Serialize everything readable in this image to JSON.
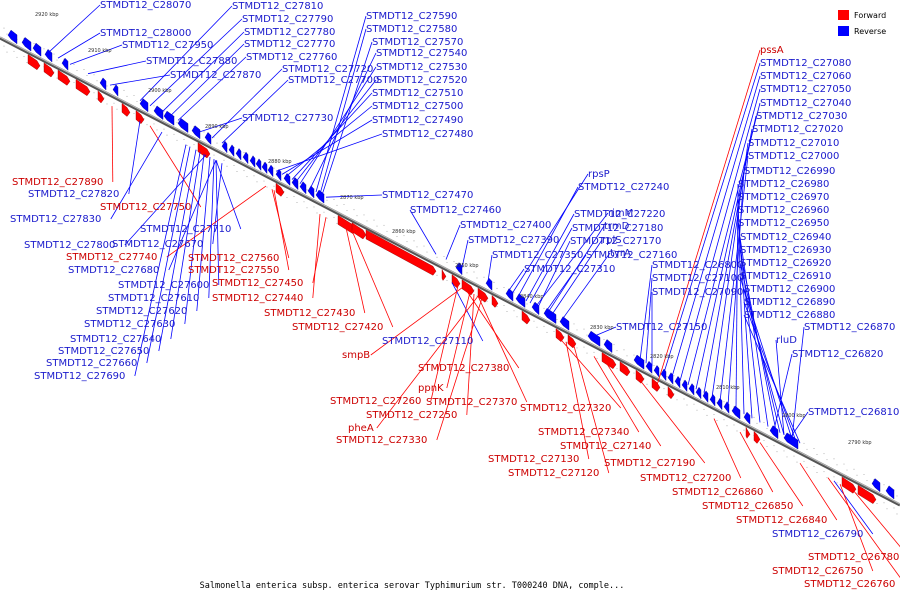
{
  "caption": "Salmonella enterica subsp. enterica serovar Typhimurium str. T000240 DNA, comple...",
  "legend": [
    {
      "label": "Forward",
      "color": "#ff0000"
    },
    {
      "label": "Reverse",
      "color": "#0000ff"
    }
  ],
  "colors": {
    "forward": "#ff0000",
    "reverse": "#0000ff",
    "forward_text": "#cc0000",
    "reverse_text": "#1a1acc"
  },
  "ticks": [
    "2920 kbp",
    "2910 kbp",
    "2900 kbp",
    "2890 kbp",
    "2880 kbp",
    "2870 kbp",
    "2860 kbp",
    "2850 kbp",
    "2840 kbp",
    "2830 kbp",
    "2820 kbp",
    "2810 kbp",
    "2800 kbp",
    "2790 kbp"
  ],
  "labels": [
    {
      "t": "STMDT12_C28070",
      "s": "r"
    },
    {
      "t": "STMDT12_C28000",
      "s": "r"
    },
    {
      "t": "STMDT12_C27950",
      "s": "r"
    },
    {
      "t": "STMDT12_C27880",
      "s": "r"
    },
    {
      "t": "STMDT12_C27870",
      "s": "r"
    },
    {
      "t": "STMDT12_C27810",
      "s": "r"
    },
    {
      "t": "STMDT12_C27790",
      "s": "r"
    },
    {
      "t": "STMDT12_C27780",
      "s": "r"
    },
    {
      "t": "STMDT12_C27770",
      "s": "r"
    },
    {
      "t": "STMDT12_C27760",
      "s": "r"
    },
    {
      "t": "STMDT12_C27720",
      "s": "r"
    },
    {
      "t": "STMDT12_C27700",
      "s": "r"
    },
    {
      "t": "STMDT12_C27730",
      "s": "r"
    },
    {
      "t": "STMDT12_C27590",
      "s": "r"
    },
    {
      "t": "STMDT12_C27580",
      "s": "r"
    },
    {
      "t": "STMDT12_C27570",
      "s": "r"
    },
    {
      "t": "STMDT12_C27540",
      "s": "r"
    },
    {
      "t": "STMDT12_C27530",
      "s": "r"
    },
    {
      "t": "STMDT12_C27520",
      "s": "r"
    },
    {
      "t": "STMDT12_C27510",
      "s": "r"
    },
    {
      "t": "STMDT12_C27500",
      "s": "r"
    },
    {
      "t": "STMDT12_C27490",
      "s": "r"
    },
    {
      "t": "STMDT12_C27480",
      "s": "r"
    },
    {
      "t": "STMDT12_C27890",
      "s": "f"
    },
    {
      "t": "STMDT12_C27820",
      "s": "r"
    },
    {
      "t": "STMDT12_C27750",
      "s": "f"
    },
    {
      "t": "STMDT12_C27830",
      "s": "r"
    },
    {
      "t": "STMDT12_C27710",
      "s": "r"
    },
    {
      "t": "STMDT12_C27800",
      "s": "r"
    },
    {
      "t": "STMDT12_C27670",
      "s": "r"
    },
    {
      "t": "STMDT12_C27740",
      "s": "f"
    },
    {
      "t": "STMDT12_C27560",
      "s": "f"
    },
    {
      "t": "STMDT12_C27680",
      "s": "r"
    },
    {
      "t": "STMDT12_C27550",
      "s": "f"
    },
    {
      "t": "STMDT12_C27600",
      "s": "r"
    },
    {
      "t": "STMDT12_C27450",
      "s": "f"
    },
    {
      "t": "STMDT12_C27610",
      "s": "r"
    },
    {
      "t": "STMDT12_C27440",
      "s": "f"
    },
    {
      "t": "STMDT12_C27620",
      "s": "r"
    },
    {
      "t": "STMDT12_C27430",
      "s": "f"
    },
    {
      "t": "STMDT12_C27630",
      "s": "r"
    },
    {
      "t": "STMDT12_C27420",
      "s": "f"
    },
    {
      "t": "STMDT12_C27640",
      "s": "r"
    },
    {
      "t": "STMDT12_C27650",
      "s": "r"
    },
    {
      "t": "STMDT12_C27660",
      "s": "r"
    },
    {
      "t": "STMDT12_C27690",
      "s": "r"
    },
    {
      "t": "STMDT12_C27470",
      "s": "r"
    },
    {
      "t": "STMDT12_C27460",
      "s": "r"
    },
    {
      "t": "STMDT12_C27400",
      "s": "r"
    },
    {
      "t": "STMDT12_C27390",
      "s": "r"
    },
    {
      "t": "STMDT12_C27350",
      "s": "r"
    },
    {
      "t": "STMDT12_C27310",
      "s": "r"
    },
    {
      "t": "rpsP",
      "s": "r"
    },
    {
      "t": "STMDT12_C27240",
      "s": "r"
    },
    {
      "t": "STMDT12_C27220",
      "s": "r"
    },
    {
      "t": "rimM",
      "s": "r"
    },
    {
      "t": "STMDT12_C27180",
      "s": "r"
    },
    {
      "t": "trmD",
      "s": "r"
    },
    {
      "t": "STMDT12_C27170",
      "s": "r"
    },
    {
      "t": "rplS",
      "s": "r"
    },
    {
      "t": "STMDT12_C27160",
      "s": "r"
    },
    {
      "t": "tyrA",
      "s": "r"
    },
    {
      "t": "STMDT12_C27150",
      "s": "r"
    },
    {
      "t": "STMDT12_C27110",
      "s": "r"
    },
    {
      "t": "smpB",
      "s": "f"
    },
    {
      "t": "STMDT12_C27380",
      "s": "f"
    },
    {
      "t": "ppnK",
      "s": "f"
    },
    {
      "t": "STMDT12_C27260",
      "s": "f"
    },
    {
      "t": "STMDT12_C27370",
      "s": "f"
    },
    {
      "t": "STMDT12_C27250",
      "s": "f"
    },
    {
      "t": "STMDT12_C27320",
      "s": "f"
    },
    {
      "t": "pheA",
      "s": "f"
    },
    {
      "t": "STMDT12_C27330",
      "s": "f"
    },
    {
      "t": "STMDT12_C27340",
      "s": "f"
    },
    {
      "t": "STMDT12_C27140",
      "s": "f"
    },
    {
      "t": "STMDT12_C27130",
      "s": "f"
    },
    {
      "t": "STMDT12_C27190",
      "s": "f"
    },
    {
      "t": "STMDT12_C27120",
      "s": "f"
    },
    {
      "t": "STMDT12_C27200",
      "s": "f"
    },
    {
      "t": "STMDT12_C26860",
      "s": "f"
    },
    {
      "t": "STMDT12_C26850",
      "s": "f"
    },
    {
      "t": "STMDT12_C26840",
      "s": "f"
    },
    {
      "t": "STMDT12_C26790",
      "s": "r"
    },
    {
      "t": "STMDT12_C26780",
      "s": "f"
    },
    {
      "t": "STMDT12_C26750",
      "s": "f"
    },
    {
      "t": "STMDT12_C26760",
      "s": "f"
    },
    {
      "t": "pssA",
      "s": "f"
    },
    {
      "t": "STMDT12_C27080",
      "s": "r"
    },
    {
      "t": "STMDT12_C27060",
      "s": "r"
    },
    {
      "t": "STMDT12_C27050",
      "s": "r"
    },
    {
      "t": "STMDT12_C27040",
      "s": "r"
    },
    {
      "t": "STMDT12_C27030",
      "s": "r"
    },
    {
      "t": "STMDT12_C27020",
      "s": "r"
    },
    {
      "t": "STMDT12_C27010",
      "s": "r"
    },
    {
      "t": "STMDT12_C27000",
      "s": "r"
    },
    {
      "t": "STMDT12_C26990",
      "s": "r"
    },
    {
      "t": "STMDT12_C26980",
      "s": "r"
    },
    {
      "t": "STMDT12_C26970",
      "s": "r"
    },
    {
      "t": "STMDT12_C26960",
      "s": "r"
    },
    {
      "t": "STMDT12_C26950",
      "s": "r"
    },
    {
      "t": "STMDT12_C26940",
      "s": "r"
    },
    {
      "t": "STMDT12_C26930",
      "s": "r"
    },
    {
      "t": "STMDT12_C26920",
      "s": "r"
    },
    {
      "t": "STMDT12_C26910",
      "s": "r"
    },
    {
      "t": "STMDT12_C26900",
      "s": "r"
    },
    {
      "t": "STMDT12_C26890",
      "s": "r"
    },
    {
      "t": "STMDT12_C26880",
      "s": "r"
    },
    {
      "t": "STMDT12_C26870",
      "s": "r"
    },
    {
      "t": "rluD",
      "s": "r"
    },
    {
      "t": "STMDT12_C26820",
      "s": "r"
    },
    {
      "t": "STMDT12_C26810",
      "s": "r"
    },
    {
      "t": "STMDT12_C26800",
      "s": "r"
    },
    {
      "t": "STMDT12_C27100",
      "s": "r"
    },
    {
      "t": "STMDT12_C27090",
      "s": "r"
    },
    {
      "t": "STMDT12_C27070",
      "s": "r"
    }
  ]
}
